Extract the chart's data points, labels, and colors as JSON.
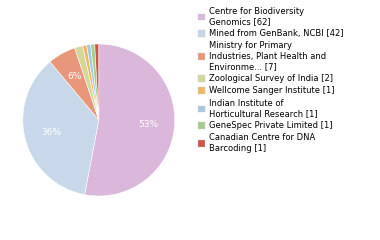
{
  "labels": [
    "Centre for Biodiversity\nGenomics [62]",
    "Mined from GenBank, NCBI [42]",
    "Ministry for Primary\nIndustries, Plant Health and\nEnvironme... [7]",
    "Zoological Survey of India [2]",
    "Wellcome Sanger Institute [1]",
    "Indian Institute of\nHorticultural Research [1]",
    "GeneSpec Private Limited [1]",
    "Canadian Centre for DNA\nBarcoding [1]"
  ],
  "values": [
    62,
    42,
    7,
    2,
    1,
    1,
    1,
    1
  ],
  "colors": [
    "#dbb8db",
    "#c8d8ea",
    "#e8977a",
    "#d4d89a",
    "#f0b865",
    "#a8c8e0",
    "#a8cc90",
    "#cc5545"
  ],
  "legend_labels": [
    "Centre for Biodiversity\nGenomics [62]",
    "Mined from GenBank, NCBI [42]",
    "Ministry for Primary\nIndustries, Plant Health and\nEnvironme... [7]",
    "Zoological Survey of India [2]",
    "Wellcome Sanger Institute [1]",
    "Indian Institute of\nHorticultural Research [1]",
    "GeneSpec Private Limited [1]",
    "Canadian Centre for DNA\nBarcoding [1]"
  ],
  "pct_thresholds": [
    5,
    5,
    5
  ],
  "text_color": "white",
  "fontsize_pct": 6.5,
  "fontsize_legend": 6.0,
  "background_color": "#ffffff",
  "startangle": 90,
  "pct_distance": 0.65
}
